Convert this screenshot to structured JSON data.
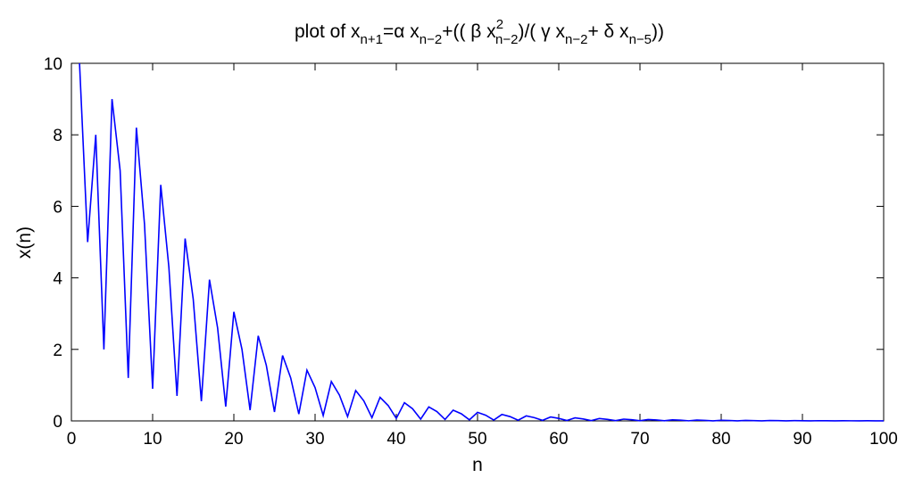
{
  "chart_data": {
    "type": "line",
    "title": {
      "pre": "plot of x",
      "s1": "n+1",
      "m1": "=α x",
      "s2": "n−2",
      "m2": "+(( β x",
      "sup": "2",
      "s3": "n−2",
      "m3": ")/( γ x",
      "s4": "n−2",
      "m4": "+ δ x",
      "s5": "n−5",
      "post": "))"
    },
    "xlabel": "n",
    "ylabel": "x(n)",
    "xlim": [
      0,
      100
    ],
    "ylim": [
      0,
      10
    ],
    "xticks": [
      0,
      10,
      20,
      30,
      40,
      50,
      60,
      70,
      80,
      90,
      100
    ],
    "yticks": [
      0,
      2,
      4,
      6,
      8,
      10
    ],
    "grid": false,
    "line_color": "#0000ff",
    "x_start": 1,
    "x_end": 100,
    "values": [
      10,
      5,
      8,
      2,
      9,
      7,
      1.2,
      8.2,
      5.5,
      0.9,
      6.6,
      4.3,
      0.7,
      5.1,
      3.4,
      0.55,
      3.95,
      2.6,
      0.4,
      3.05,
      2.0,
      0.3,
      2.38,
      1.55,
      0.25,
      1.83,
      1.2,
      0.19,
      1.42,
      0.93,
      0.15,
      1.1,
      0.72,
      0.12,
      0.85,
      0.56,
      0.09,
      0.66,
      0.43,
      0.07,
      0.51,
      0.34,
      0.05,
      0.39,
      0.26,
      0.04,
      0.3,
      0.2,
      0.03,
      0.24,
      0.16,
      0.025,
      0.18,
      0.12,
      0.02,
      0.14,
      0.09,
      0.015,
      0.11,
      0.07,
      0.012,
      0.085,
      0.055,
      0.009,
      0.066,
      0.043,
      0.007,
      0.05,
      0.033,
      0.005,
      0.04,
      0.026,
      0.004,
      0.03,
      0.02,
      0.003,
      0.024,
      0.015,
      0.002,
      0.018,
      0.012,
      0.002,
      0.014,
      0.009,
      0.001,
      0.011,
      0.007,
      0.001,
      0.008,
      0.005,
      0.001,
      0.006,
      0.004,
      0.001,
      0.005,
      0.003,
      0.001,
      0.004,
      0.002,
      0.001
    ]
  }
}
